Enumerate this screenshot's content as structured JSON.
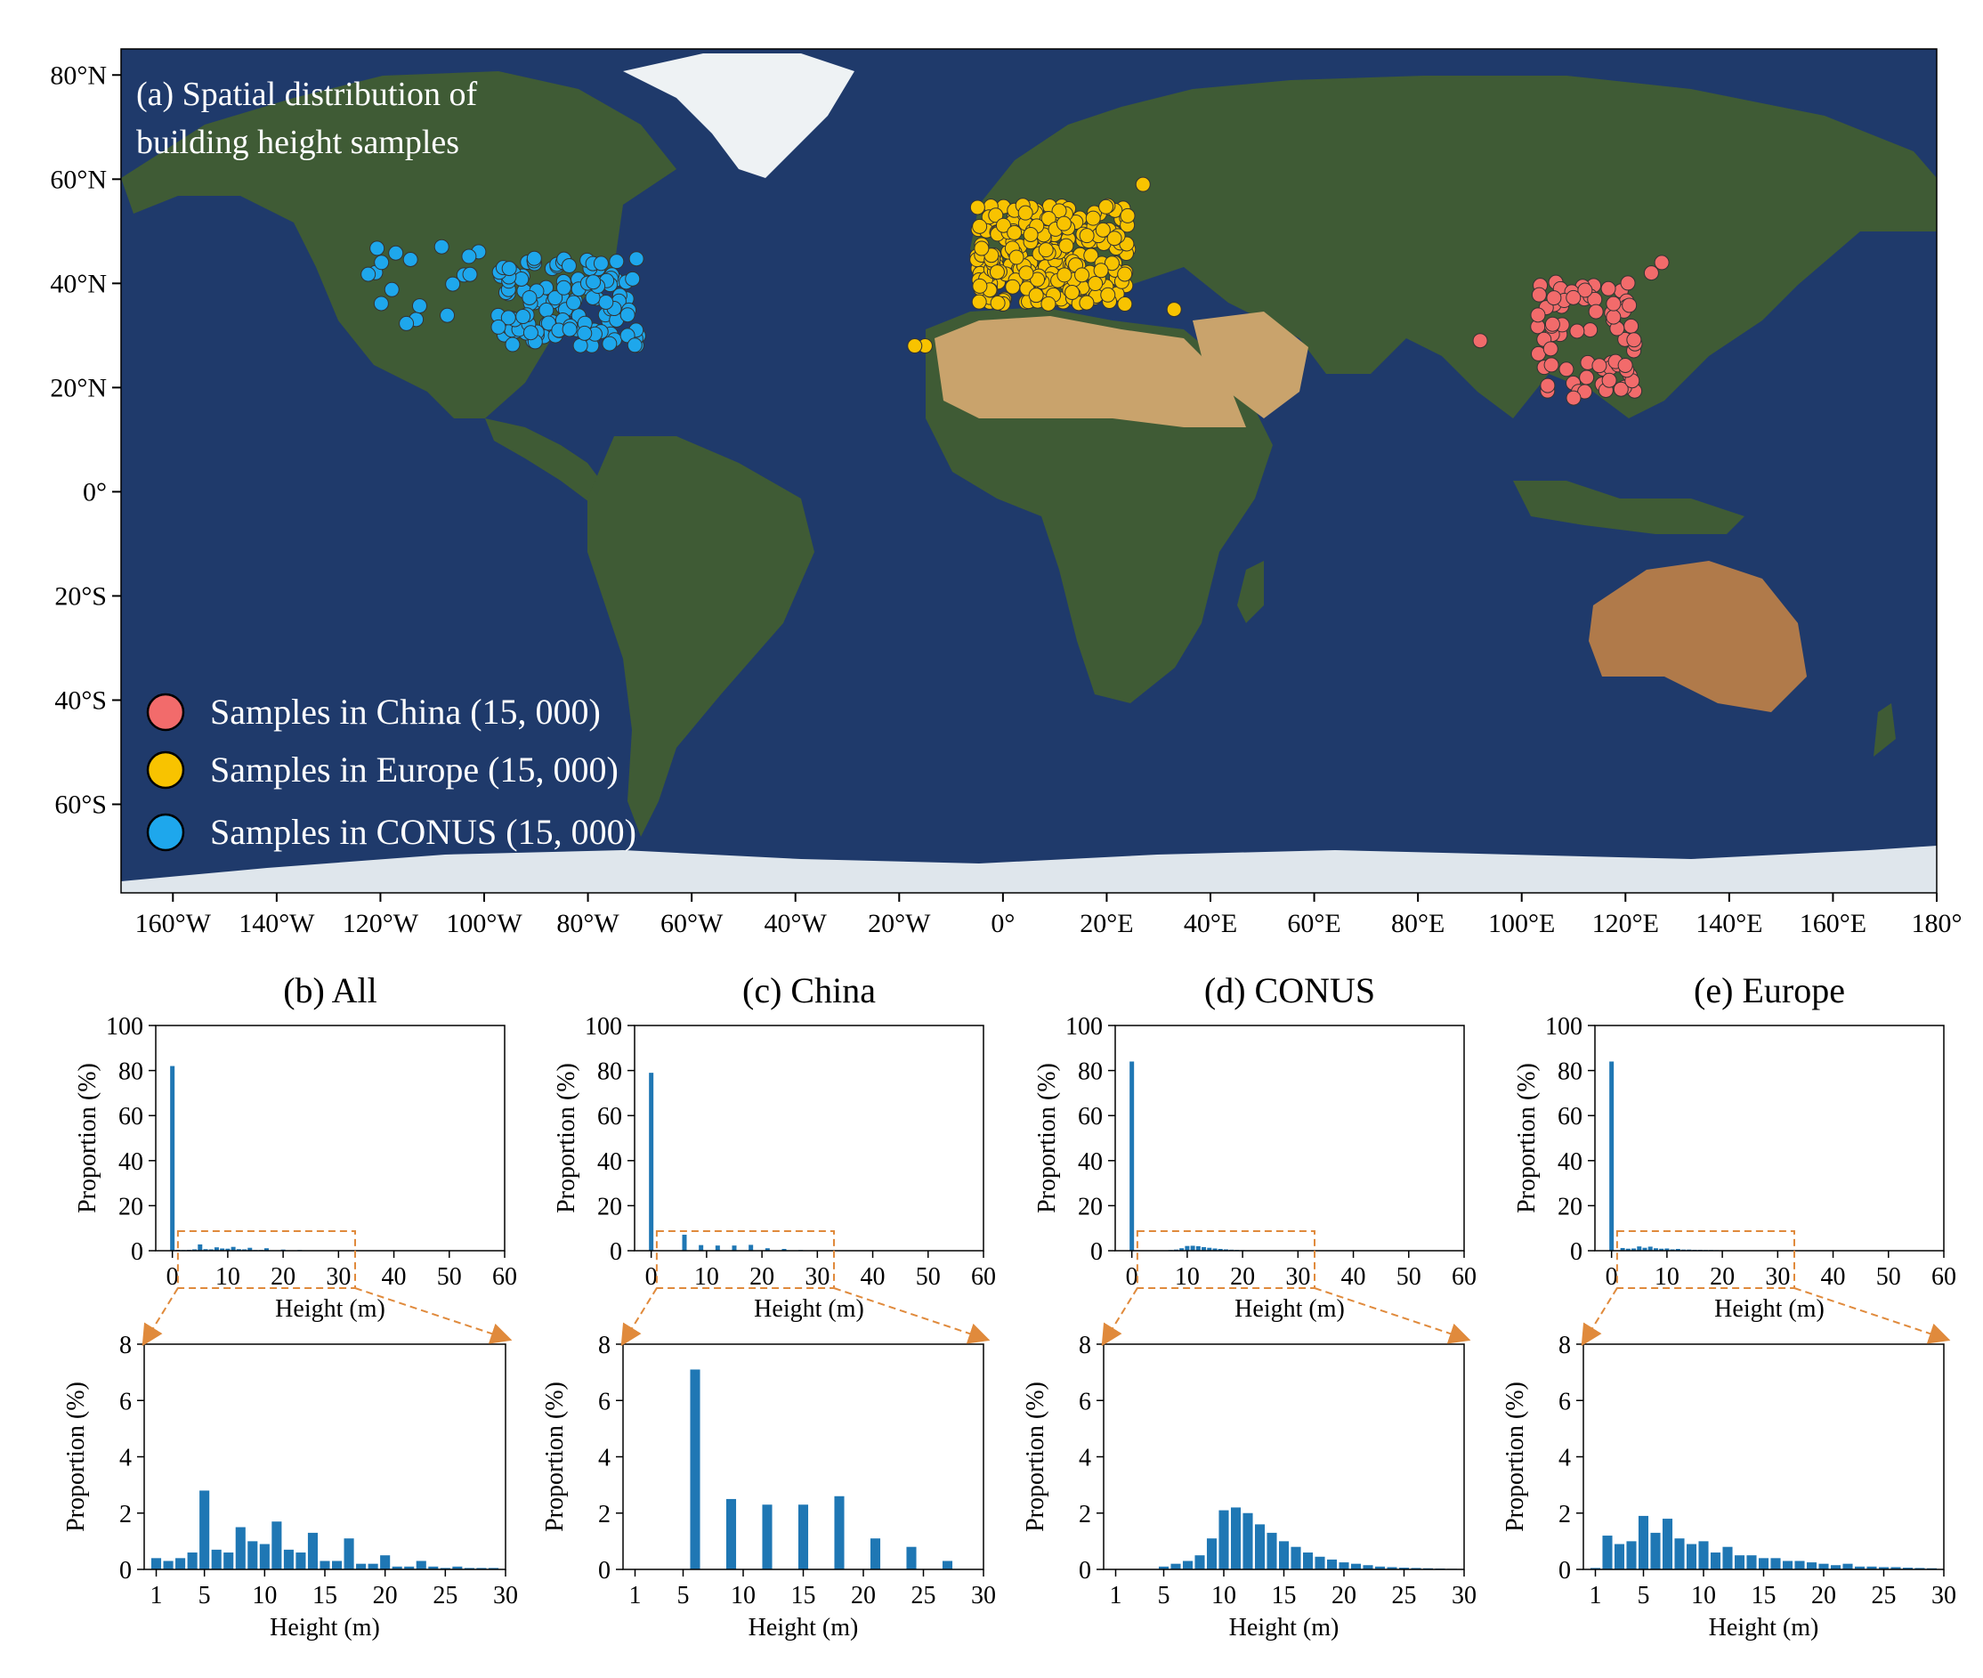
{
  "map": {
    "title_line1": "(a) Spatial distribution of",
    "title_line2": "building height samples",
    "lat_ticks": [
      "80°N",
      "60°N",
      "40°N",
      "20°N",
      "0°",
      "20°S",
      "40°S",
      "60°S"
    ],
    "lat_values": [
      80,
      60,
      40,
      20,
      0,
      -20,
      -40,
      -60
    ],
    "lon_ticks": [
      "160°W",
      "140°W",
      "120°W",
      "100°W",
      "80°W",
      "60°W",
      "40°W",
      "20°W",
      "0°",
      "20°E",
      "40°E",
      "60°E",
      "80°E",
      "100°E",
      "120°E",
      "140°E",
      "160°E",
      "180°"
    ],
    "lon_values": [
      -160,
      -140,
      -120,
      -100,
      -80,
      -60,
      -40,
      -20,
      0,
      20,
      40,
      60,
      80,
      100,
      120,
      140,
      160,
      180
    ],
    "lon_range": [
      -170,
      180
    ],
    "lat_range": [
      -77,
      85
    ],
    "legend": [
      {
        "label": "Samples in China (15, 000)",
        "color": "#f26b6b"
      },
      {
        "label": "Samples in Europe (15, 000)",
        "color": "#f8c300"
      },
      {
        "label": "Samples in CONUS (15, 000)",
        "color": "#1ea7ec"
      }
    ],
    "ocean_color": "#1f3a6b",
    "land_color": "#3f5b35",
    "desert_color": "#c9a36c",
    "ice_color": "#dfe6ec"
  },
  "chart_data": [
    {
      "type": "bar",
      "title": "(b) All",
      "xlabel": "Height (m)",
      "ylabel": "Proportion (%)",
      "xlim": [
        -3,
        60
      ],
      "ylim": [
        0,
        100
      ],
      "xticks": [
        "0",
        "10",
        "20",
        "30",
        "40",
        "50",
        "60"
      ],
      "yticks": [
        "0",
        "20",
        "40",
        "60",
        "80",
        "100"
      ],
      "x": [
        0,
        1,
        2,
        3,
        4,
        5,
        6,
        7,
        8,
        9,
        10,
        11,
        12,
        13,
        14,
        15,
        16,
        17,
        18,
        19,
        20,
        21,
        22,
        23,
        24,
        25,
        26,
        27,
        28,
        29
      ],
      "values": [
        82,
        0.4,
        0.3,
        0.4,
        0.6,
        2.8,
        0.7,
        0.6,
        1.5,
        1.0,
        0.9,
        1.7,
        0.7,
        0.6,
        1.3,
        0.3,
        0.3,
        1.1,
        0.2,
        0.2,
        0.5,
        0.1,
        0.1,
        0.3,
        0.1,
        0.05,
        0.1,
        0.05,
        0.05,
        0.05
      ]
    },
    {
      "type": "bar",
      "title": "(c) China",
      "xlabel": "Height (m)",
      "ylabel": "Proportion (%)",
      "xlim": [
        -3,
        60
      ],
      "ylim": [
        0,
        100
      ],
      "xticks": [
        "0",
        "10",
        "20",
        "30",
        "40",
        "50",
        "60"
      ],
      "yticks": [
        "0",
        "20",
        "40",
        "60",
        "80",
        "100"
      ],
      "x": [
        0,
        6,
        9,
        12,
        15,
        18,
        21,
        24,
        27
      ],
      "values": [
        79,
        7.1,
        2.5,
        2.3,
        2.3,
        2.6,
        1.1,
        0.8,
        0.3
      ]
    },
    {
      "type": "bar",
      "title": "(d) CONUS",
      "xlabel": "Height (m)",
      "ylabel": "Proportion (%)",
      "xlim": [
        -3,
        60
      ],
      "ylim": [
        0,
        100
      ],
      "xticks": [
        "0",
        "10",
        "20",
        "30",
        "40",
        "50",
        "60"
      ],
      "yticks": [
        "0",
        "20",
        "40",
        "60",
        "80",
        "100"
      ],
      "x": [
        0,
        5,
        6,
        7,
        8,
        9,
        10,
        11,
        12,
        13,
        14,
        15,
        16,
        17,
        18,
        19,
        20,
        21,
        22,
        23,
        24,
        25,
        26,
        27,
        28,
        29
      ],
      "values": [
        84,
        0.1,
        0.2,
        0.3,
        0.5,
        1.1,
        2.1,
        2.2,
        2.0,
        1.6,
        1.3,
        1.0,
        0.8,
        0.6,
        0.45,
        0.35,
        0.25,
        0.2,
        0.15,
        0.1,
        0.08,
        0.06,
        0.05,
        0.04,
        0.03,
        0.02
      ]
    },
    {
      "type": "bar",
      "title": "(e) Europe",
      "xlabel": "Height (m)",
      "ylabel": "Proportion (%)",
      "xlim": [
        -3,
        60
      ],
      "ylim": [
        0,
        100
      ],
      "xticks": [
        "0",
        "10",
        "20",
        "30",
        "40",
        "50",
        "60"
      ],
      "yticks": [
        "0",
        "20",
        "40",
        "60",
        "80",
        "100"
      ],
      "x": [
        0,
        1,
        2,
        3,
        4,
        5,
        6,
        7,
        8,
        9,
        10,
        11,
        12,
        13,
        14,
        15,
        16,
        17,
        18,
        19,
        20,
        21,
        22,
        23,
        24,
        25,
        26,
        27,
        28,
        29
      ],
      "values": [
        84,
        0.05,
        1.2,
        0.9,
        1.0,
        1.9,
        1.3,
        1.8,
        1.1,
        0.9,
        1.0,
        0.6,
        0.8,
        0.5,
        0.5,
        0.4,
        0.4,
        0.3,
        0.3,
        0.25,
        0.2,
        0.15,
        0.2,
        0.1,
        0.1,
        0.08,
        0.08,
        0.06,
        0.05,
        0.04
      ]
    },
    {
      "type": "bar",
      "title": "",
      "xlabel": "Height (m)",
      "ylabel": "Proportion (%)",
      "xlim": [
        0,
        30
      ],
      "ylim": [
        0,
        8
      ],
      "xticks": [
        "1",
        "5",
        "10",
        "15",
        "20",
        "25",
        "30"
      ],
      "xtick_values": [
        1,
        5,
        10,
        15,
        20,
        25,
        30
      ],
      "yticks": [
        "0",
        "2",
        "4",
        "6",
        "8"
      ],
      "x": [
        1,
        2,
        3,
        4,
        5,
        6,
        7,
        8,
        9,
        10,
        11,
        12,
        13,
        14,
        15,
        16,
        17,
        18,
        19,
        20,
        21,
        22,
        23,
        24,
        25,
        26,
        27,
        28,
        29
      ],
      "values": [
        0.4,
        0.3,
        0.4,
        0.6,
        2.8,
        0.7,
        0.6,
        1.5,
        1.0,
        0.9,
        1.7,
        0.7,
        0.6,
        1.3,
        0.3,
        0.3,
        1.1,
        0.2,
        0.2,
        0.5,
        0.1,
        0.1,
        0.3,
        0.1,
        0.05,
        0.1,
        0.05,
        0.05,
        0.05
      ]
    },
    {
      "type": "bar",
      "title": "",
      "xlabel": "Height (m)",
      "ylabel": "Proportion (%)",
      "xlim": [
        0,
        30
      ],
      "ylim": [
        0,
        8
      ],
      "xticks": [
        "1",
        "5",
        "10",
        "15",
        "20",
        "25",
        "30"
      ],
      "xtick_values": [
        1,
        5,
        10,
        15,
        20,
        25,
        30
      ],
      "yticks": [
        "0",
        "2",
        "4",
        "6",
        "8"
      ],
      "x": [
        6,
        9,
        12,
        15,
        18,
        21,
        24,
        27
      ],
      "values": [
        7.1,
        2.5,
        2.3,
        2.3,
        2.6,
        1.1,
        0.8,
        0.3
      ]
    },
    {
      "type": "bar",
      "title": "",
      "xlabel": "Height (m)",
      "ylabel": "Proportion (%)",
      "xlim": [
        0,
        30
      ],
      "ylim": [
        0,
        8
      ],
      "xticks": [
        "1",
        "5",
        "10",
        "15",
        "20",
        "25",
        "30"
      ],
      "xtick_values": [
        1,
        5,
        10,
        15,
        20,
        25,
        30
      ],
      "yticks": [
        "0",
        "2",
        "4",
        "6",
        "8"
      ],
      "x": [
        5,
        6,
        7,
        8,
        9,
        10,
        11,
        12,
        13,
        14,
        15,
        16,
        17,
        18,
        19,
        20,
        21,
        22,
        23,
        24,
        25,
        26,
        27,
        28,
        29
      ],
      "values": [
        0.1,
        0.2,
        0.3,
        0.5,
        1.1,
        2.1,
        2.2,
        2.0,
        1.6,
        1.3,
        1.0,
        0.8,
        0.6,
        0.45,
        0.35,
        0.25,
        0.2,
        0.15,
        0.1,
        0.08,
        0.06,
        0.05,
        0.04,
        0.03,
        0.02
      ]
    },
    {
      "type": "bar",
      "title": "",
      "xlabel": "Height (m)",
      "ylabel": "Proportion (%)",
      "xlim": [
        0,
        30
      ],
      "ylim": [
        0,
        8
      ],
      "xticks": [
        "1",
        "5",
        "10",
        "15",
        "20",
        "25",
        "30"
      ],
      "xtick_values": [
        1,
        5,
        10,
        15,
        20,
        25,
        30
      ],
      "yticks": [
        "0",
        "2",
        "4",
        "6",
        "8"
      ],
      "x": [
        1,
        2,
        3,
        4,
        5,
        6,
        7,
        8,
        9,
        10,
        11,
        12,
        13,
        14,
        15,
        16,
        17,
        18,
        19,
        20,
        21,
        22,
        23,
        24,
        25,
        26,
        27,
        28,
        29
      ],
      "values": [
        0.05,
        1.2,
        0.9,
        1.0,
        1.9,
        1.3,
        1.8,
        1.1,
        0.9,
        1.0,
        0.6,
        0.8,
        0.5,
        0.5,
        0.4,
        0.4,
        0.3,
        0.3,
        0.25,
        0.2,
        0.15,
        0.2,
        0.1,
        0.1,
        0.08,
        0.08,
        0.06,
        0.05,
        0.04
      ]
    }
  ],
  "colors": {
    "bar": "#1f77b4",
    "zoom_box": "#e08a3c",
    "axis": "#000000"
  }
}
